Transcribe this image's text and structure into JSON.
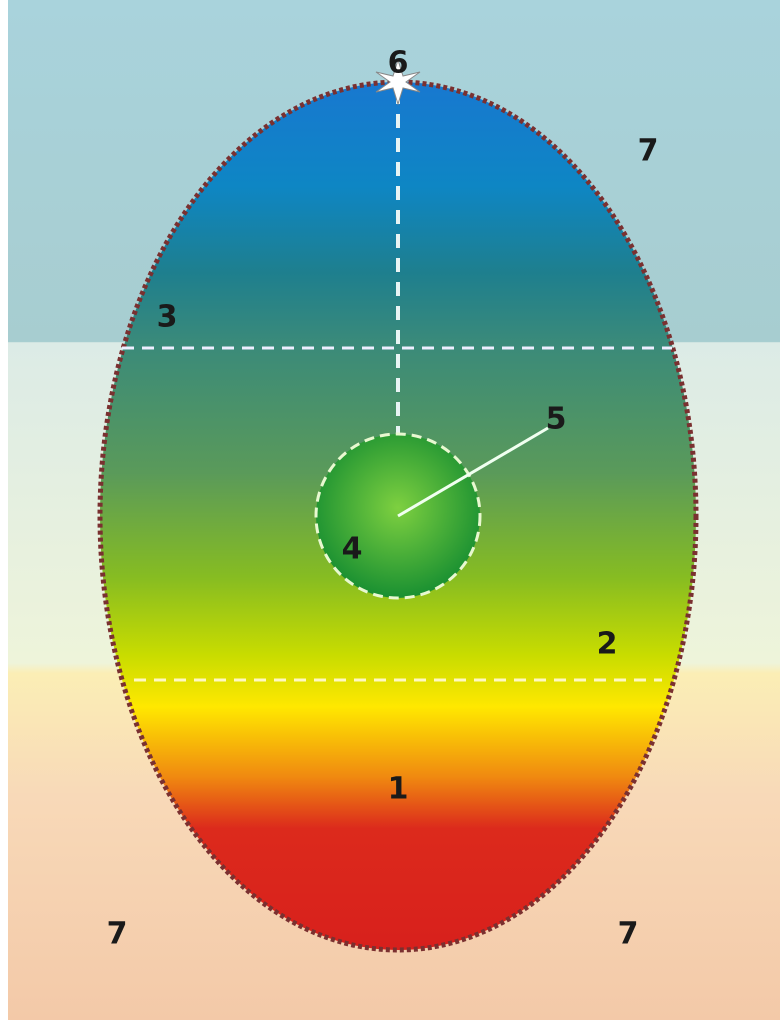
{
  "labels": [
    "1",
    "2",
    "3",
    "4",
    "5",
    "6",
    "7",
    "7",
    "7"
  ]
}
